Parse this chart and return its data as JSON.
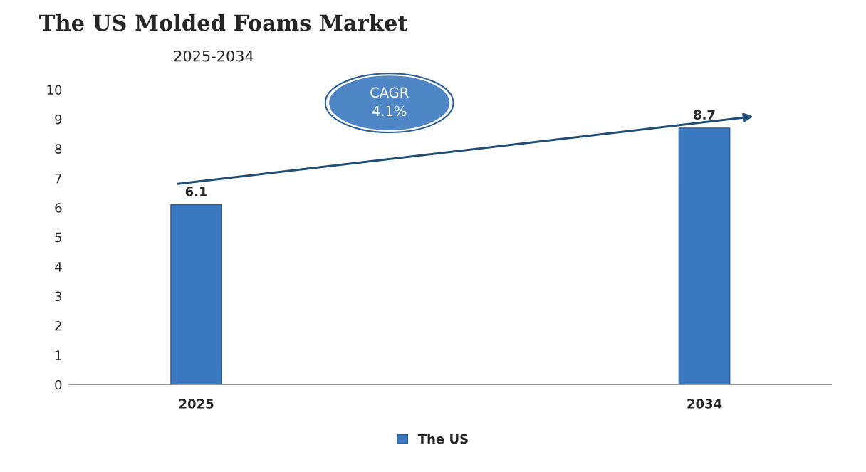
{
  "chart_data": {
    "type": "bar",
    "title": "The US Molded Foams Market",
    "subtitle": "2025-2034",
    "categories": [
      "2025",
      "2034"
    ],
    "series": [
      {
        "name": "The US",
        "color": "#3a78c0",
        "values": [
          6.1,
          8.7
        ]
      }
    ],
    "ylim": [
      0,
      10
    ],
    "yticks": [
      0,
      1,
      2,
      3,
      4,
      5,
      6,
      7,
      8,
      9,
      10
    ],
    "data_labels": true,
    "grid": false,
    "legend": "bottom",
    "annotations": [
      "CAGR\n4.1%"
    ]
  }
}
